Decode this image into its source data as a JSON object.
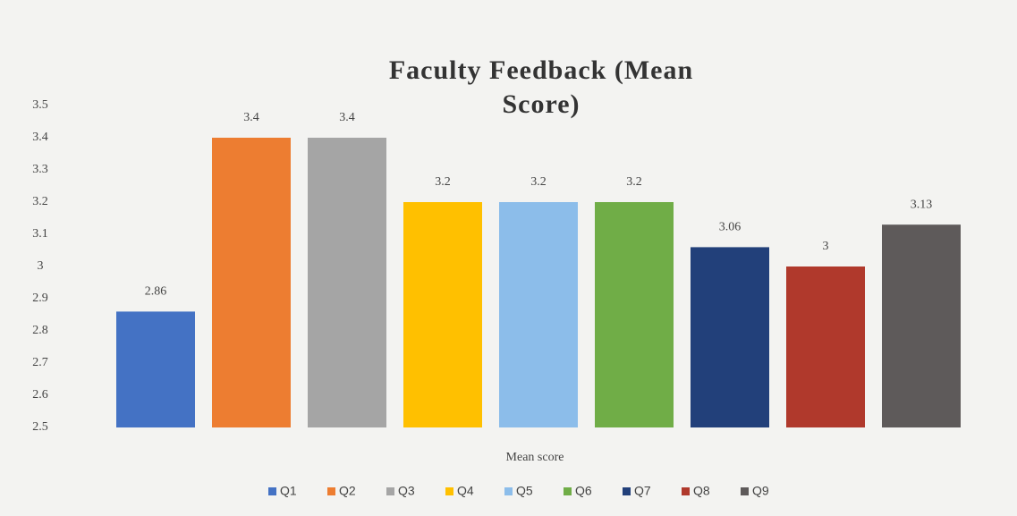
{
  "chart_data": {
    "type": "bar",
    "title": "Faculty Feedback (Mean Score)",
    "x_label": "Mean score",
    "categories": [
      "Mean score"
    ],
    "series": [
      {
        "name": "Q1",
        "color": "#4472c4",
        "values": [
          2.86
        ]
      },
      {
        "name": "Q2",
        "color": "#ed7d31",
        "values": [
          3.4
        ]
      },
      {
        "name": "Q3",
        "color": "#a5a5a5",
        "values": [
          3.4
        ]
      },
      {
        "name": "Q4",
        "color": "#ffc000",
        "values": [
          3.2
        ]
      },
      {
        "name": "Q5",
        "color": "#8cbdea",
        "values": [
          3.2
        ]
      },
      {
        "name": "Q6",
        "color": "#70ad47",
        "values": [
          3.2
        ]
      },
      {
        "name": "Q7",
        "color": "#22407a",
        "values": [
          3.06
        ]
      },
      {
        "name": "Q8",
        "color": "#b0392c",
        "values": [
          3
        ]
      },
      {
        "name": "Q9",
        "color": "#5e5a5a",
        "values": [
          3.13
        ]
      }
    ],
    "ylim": [
      2.5,
      3.5
    ],
    "yticks": [
      2.5,
      2.6,
      2.7,
      2.8,
      2.9,
      3,
      3.1,
      3.2,
      3.3,
      3.4,
      3.5
    ],
    "grid": false,
    "legend": "bottom"
  }
}
